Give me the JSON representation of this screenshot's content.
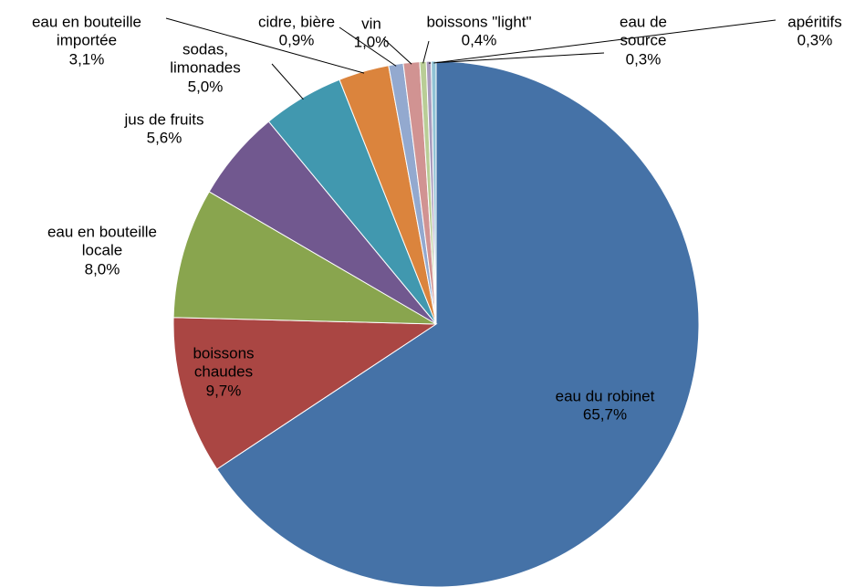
{
  "chart_data": {
    "type": "pie",
    "categories": [
      "eau du robinet",
      "boissons chaudes",
      "eau en bouteille locale",
      "jus de fruits",
      "sodas, limonades",
      "eau en bouteille importée",
      "cidre, bière",
      "vin",
      "boissons \"light\"",
      "eau de source",
      "apéritifs"
    ],
    "values": [
      65.7,
      9.7,
      8.0,
      5.6,
      5.0,
      3.1,
      0.9,
      1.0,
      0.4,
      0.3,
      0.3
    ],
    "value_labels": [
      "65,7%",
      "9,7%",
      "8,0%",
      "5,6%",
      "5,0%",
      "3,1%",
      "0,9%",
      "1,0%",
      "0,4%",
      "0,3%",
      "0,3%"
    ],
    "colors": [
      "#4572A7",
      "#AA4643",
      "#89A54E",
      "#71588F",
      "#4198AF",
      "#DB843D",
      "#93A9CF",
      "#D19392",
      "#B9CD96",
      "#A99BBD",
      "#91C3D5"
    ]
  }
}
